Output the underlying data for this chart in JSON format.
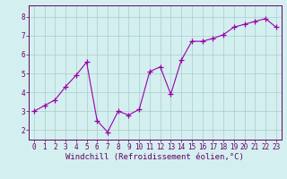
{
  "x": [
    0,
    1,
    2,
    3,
    4,
    5,
    6,
    7,
    8,
    9,
    10,
    11,
    12,
    13,
    14,
    15,
    16,
    17,
    18,
    19,
    20,
    21,
    22,
    23
  ],
  "y": [
    3.0,
    3.3,
    3.6,
    4.3,
    4.9,
    5.6,
    2.5,
    1.9,
    3.0,
    2.8,
    3.1,
    5.1,
    5.35,
    3.9,
    5.7,
    6.7,
    6.7,
    6.85,
    7.05,
    7.45,
    7.6,
    7.75,
    7.9,
    7.45
  ],
  "line_color": "#9900aa",
  "marker": "+",
  "marker_size": 4,
  "bg_color": "#d4efef",
  "grid_color": "#aacccc",
  "xlabel": "Windchill (Refroidissement éolien,°C)",
  "ylim": [
    1.5,
    8.6
  ],
  "xlim": [
    -0.5,
    23.5
  ],
  "yticks": [
    2,
    3,
    4,
    5,
    6,
    7,
    8
  ],
  "xticks": [
    0,
    1,
    2,
    3,
    4,
    5,
    6,
    7,
    8,
    9,
    10,
    11,
    12,
    13,
    14,
    15,
    16,
    17,
    18,
    19,
    20,
    21,
    22,
    23
  ],
  "tick_fontsize": 5.5,
  "xlabel_fontsize": 6.5,
  "spine_color": "#660066"
}
